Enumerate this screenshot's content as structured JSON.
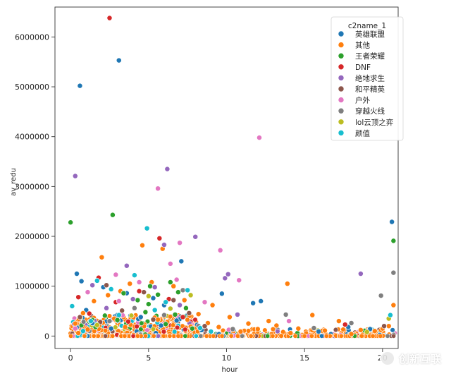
{
  "chart_data": {
    "type": "scatter",
    "title": "",
    "xlabel": "hour",
    "ylabel": "av_redu",
    "xlim": [
      -1,
      21
    ],
    "ylim": [
      -250000,
      6600000
    ],
    "xticks": [
      0,
      5,
      10,
      15,
      20
    ],
    "yticks": [
      0,
      1000000,
      2000000,
      3000000,
      4000000,
      5000000,
      6000000
    ],
    "legend": {
      "title": "c2name_1",
      "placement": "top-right",
      "entries": [
        {
          "name": "英雄联盟",
          "color": "#1f77b4"
        },
        {
          "name": "其他",
          "color": "#ff7f0e"
        },
        {
          "name": "王者荣耀",
          "color": "#2ca02c"
        },
        {
          "name": "DNF",
          "color": "#d62728"
        },
        {
          "name": "绝地求生",
          "color": "#9467bd"
        },
        {
          "name": "和平精英",
          "color": "#8c564b"
        },
        {
          "name": "户外",
          "color": "#e377c2"
        },
        {
          "name": "穿越火线",
          "color": "#7f7f7f"
        },
        {
          "name": "lol云顶之弈",
          "color": "#bcbd22"
        },
        {
          "name": "颜值",
          "color": "#17becf"
        }
      ]
    },
    "series": [
      {
        "name": "英雄联盟",
        "points": [
          [
            0.6,
            5020000
          ],
          [
            3.1,
            5530000
          ],
          [
            20.6,
            2290000
          ],
          [
            0.4,
            1250000
          ],
          [
            0.7,
            1100000
          ],
          [
            2.1,
            980000
          ],
          [
            3.6,
            860000
          ],
          [
            5.3,
            760000
          ],
          [
            6.0,
            620000
          ],
          [
            7.1,
            1500000
          ],
          [
            9.7,
            850000
          ],
          [
            11.7,
            660000
          ],
          [
            12.2,
            700000
          ],
          [
            17.8,
            180000
          ],
          [
            3.0,
            420000
          ],
          [
            1.4,
            260000
          ],
          [
            4.5,
            380000
          ],
          [
            6.8,
            310000
          ],
          [
            2.6,
            150000
          ],
          [
            8.4,
            120000
          ],
          [
            15.9,
            90000
          ],
          [
            19.2,
            140000
          ],
          [
            5.8,
            210000
          ],
          [
            1.0,
            520000
          ]
        ]
      },
      {
        "name": "其他",
        "points": [
          [
            0.8,
            460000
          ],
          [
            1.5,
            700000
          ],
          [
            2.0,
            1580000
          ],
          [
            2.4,
            820000
          ],
          [
            3.2,
            900000
          ],
          [
            3.8,
            1050000
          ],
          [
            4.6,
            1820000
          ],
          [
            5.2,
            1080000
          ],
          [
            5.9,
            1750000
          ],
          [
            6.6,
            1000000
          ],
          [
            7.3,
            720000
          ],
          [
            8.2,
            440000
          ],
          [
            9.1,
            620000
          ],
          [
            10.2,
            380000
          ],
          [
            11.4,
            250000
          ],
          [
            12.7,
            300000
          ],
          [
            13.9,
            1050000
          ],
          [
            14.6,
            150000
          ],
          [
            15.5,
            420000
          ],
          [
            17.2,
            300000
          ],
          [
            18.6,
            120000
          ],
          [
            19.5,
            100000
          ],
          [
            20.4,
            200000
          ],
          [
            20.7,
            620000
          ],
          [
            0.3,
            250000
          ],
          [
            1.1,
            130000
          ],
          [
            2.8,
            350000
          ],
          [
            4.1,
            560000
          ],
          [
            6.2,
            280000
          ],
          [
            7.7,
            190000
          ],
          [
            9.5,
            180000
          ],
          [
            10.9,
            90000
          ],
          [
            13.2,
            210000
          ],
          [
            16.3,
            110000
          ],
          [
            0.5,
            60000
          ],
          [
            3.5,
            180000
          ],
          [
            5.6,
            330000
          ],
          [
            8.8,
            260000
          ],
          [
            12.0,
            140000
          ],
          [
            14.1,
            60000
          ],
          [
            18.0,
            40000
          ],
          [
            20.0,
            150000
          ]
        ]
      },
      {
        "name": "王者荣耀",
        "points": [
          [
            0.0,
            2280000
          ],
          [
            2.7,
            2430000
          ],
          [
            20.7,
            1910000
          ],
          [
            3.4,
            860000
          ],
          [
            4.3,
            720000
          ],
          [
            5.1,
            1000000
          ],
          [
            5.6,
            830000
          ],
          [
            6.4,
            1080000
          ],
          [
            6.9,
            880000
          ],
          [
            7.4,
            560000
          ],
          [
            4.8,
            480000
          ],
          [
            3.0,
            320000
          ],
          [
            6.1,
            240000
          ],
          [
            2.2,
            410000
          ],
          [
            7.8,
            150000
          ],
          [
            1.6,
            180000
          ],
          [
            5.0,
            640000
          ],
          [
            6.7,
            430000
          ]
        ]
      },
      {
        "name": "DNF",
        "points": [
          [
            2.5,
            6380000
          ],
          [
            5.7,
            1960000
          ],
          [
            0.5,
            780000
          ],
          [
            1.8,
            1170000
          ],
          [
            2.9,
            680000
          ],
          [
            4.4,
            900000
          ],
          [
            6.3,
            740000
          ],
          [
            7.2,
            380000
          ],
          [
            17.6,
            230000
          ],
          [
            1.2,
            450000
          ],
          [
            3.7,
            290000
          ]
        ]
      },
      {
        "name": "绝地求生",
        "points": [
          [
            0.3,
            3210000
          ],
          [
            6.2,
            3350000
          ],
          [
            8.0,
            1990000
          ],
          [
            6.0,
            1830000
          ],
          [
            9.9,
            1160000
          ],
          [
            10.1,
            1240000
          ],
          [
            3.6,
            1410000
          ],
          [
            1.4,
            1020000
          ],
          [
            18.6,
            1250000
          ],
          [
            5.4,
            980000
          ],
          [
            2.3,
            560000
          ],
          [
            7.0,
            620000
          ],
          [
            10.7,
            430000
          ],
          [
            4.0,
            740000
          ]
        ]
      },
      {
        "name": "和平精英",
        "points": [
          [
            2.3,
            1020000
          ],
          [
            4.7,
            880000
          ],
          [
            6.6,
            720000
          ],
          [
            0.6,
            380000
          ],
          [
            3.3,
            510000
          ],
          [
            7.6,
            460000
          ],
          [
            1.9,
            280000
          ],
          [
            5.3,
            330000
          ],
          [
            8.6,
            200000
          ],
          [
            20.1,
            200000
          ]
        ]
      },
      {
        "name": "户外",
        "points": [
          [
            5.6,
            2960000
          ],
          [
            12.1,
            3980000
          ],
          [
            9.6,
            1720000
          ],
          [
            7.0,
            1870000
          ],
          [
            10.8,
            1120000
          ],
          [
            6.4,
            1450000
          ],
          [
            2.9,
            1230000
          ],
          [
            4.4,
            1080000
          ],
          [
            3.1,
            700000
          ],
          [
            6.8,
            1130000
          ],
          [
            8.6,
            680000
          ],
          [
            1.1,
            880000
          ],
          [
            0.3,
            150000
          ],
          [
            14.0,
            300000
          ]
        ]
      },
      {
        "name": "穿越火线",
        "points": [
          [
            20.7,
            1270000
          ],
          [
            19.9,
            810000
          ],
          [
            18.0,
            260000
          ],
          [
            7.2,
            920000
          ],
          [
            4.1,
            560000
          ],
          [
            13.8,
            430000
          ],
          [
            2.5,
            300000
          ],
          [
            15.6,
            160000
          ],
          [
            10.4,
            140000
          ],
          [
            6.0,
            420000
          ],
          [
            8.2,
            200000
          ]
        ]
      },
      {
        "name": "lol云顶之弈",
        "points": [
          [
            5.0,
            800000
          ],
          [
            6.4,
            550000
          ],
          [
            7.7,
            820000
          ],
          [
            3.9,
            410000
          ],
          [
            20.4,
            350000
          ],
          [
            1.7,
            220000
          ],
          [
            19.0,
            80000
          ]
        ]
      },
      {
        "name": "颜值",
        "points": [
          [
            4.9,
            2160000
          ],
          [
            0.1,
            600000
          ],
          [
            1.7,
            1110000
          ],
          [
            2.6,
            940000
          ],
          [
            4.1,
            1220000
          ],
          [
            6.1,
            680000
          ],
          [
            7.5,
            920000
          ],
          [
            3.1,
            420000
          ],
          [
            5.4,
            520000
          ],
          [
            1.3,
            300000
          ],
          [
            8.3,
            160000
          ],
          [
            20.5,
            420000
          ],
          [
            9.0,
            90000
          ],
          [
            0.8,
            100000
          ]
        ]
      }
    ]
  },
  "watermark": {
    "text": "创新互联"
  }
}
